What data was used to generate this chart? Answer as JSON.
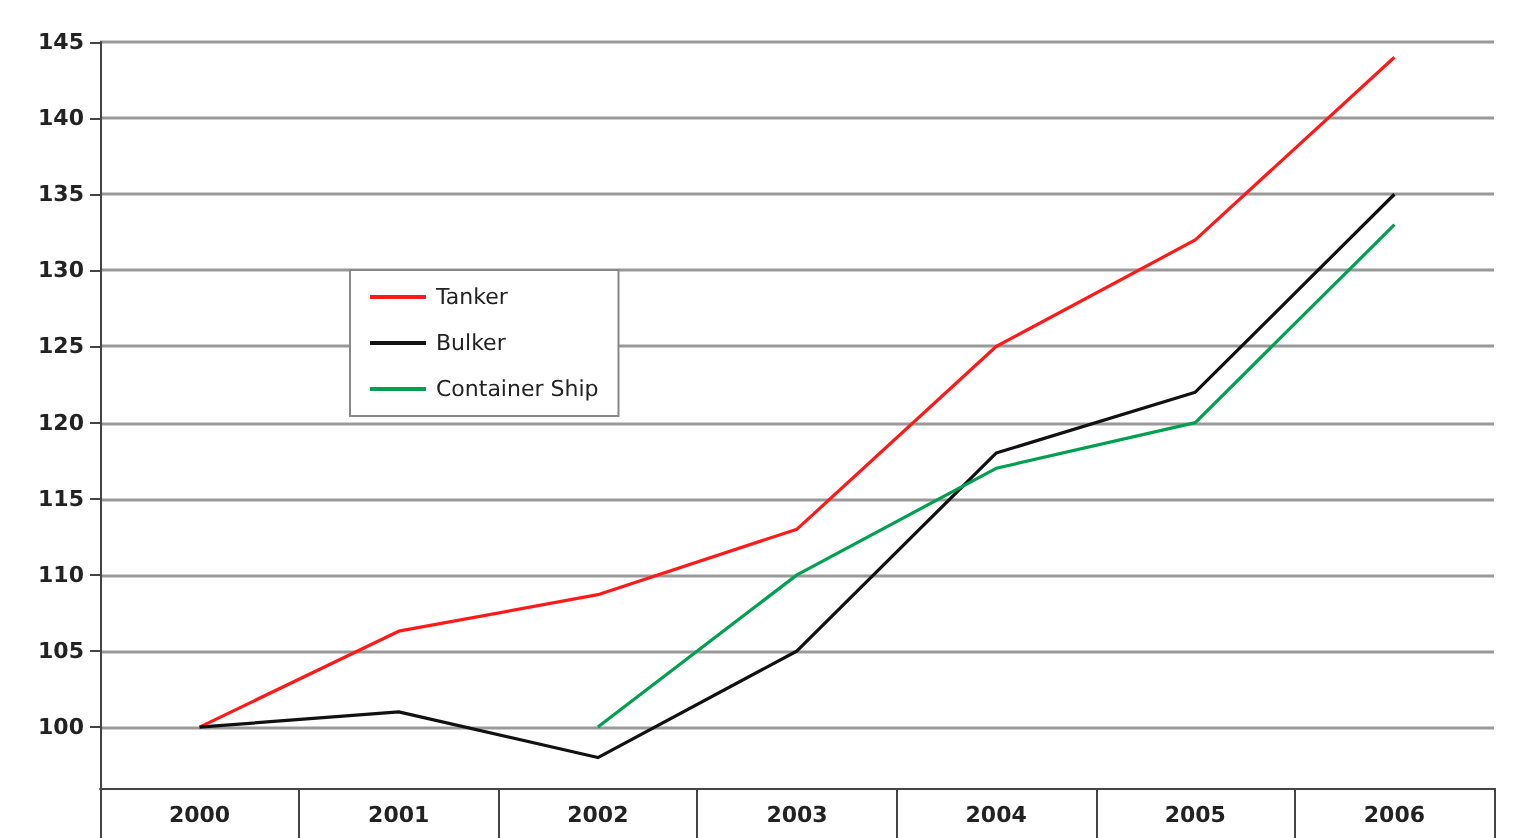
{
  "chart_data": {
    "type": "line",
    "categories": [
      "2000",
      "2001",
      "2002",
      "2003",
      "2004",
      "2005",
      "2006"
    ],
    "series": [
      {
        "name": "Tanker",
        "color": "#ff1a1a",
        "values": [
          100,
          106.3,
          108.7,
          113,
          125,
          132,
          144
        ]
      },
      {
        "name": "Bulker",
        "color": "#111111",
        "values": [
          100,
          101,
          98,
          105,
          118,
          122,
          135
        ]
      },
      {
        "name": "Container Ship",
        "color": "#00a050",
        "values": [
          null,
          null,
          100,
          110,
          117,
          120,
          133
        ]
      }
    ],
    "ylim": [
      96,
      145
    ],
    "yticks": [
      100,
      105,
      110,
      115,
      120,
      125,
      130,
      135,
      140,
      145
    ],
    "grid": "y",
    "legend": "left",
    "marker": "none"
  }
}
